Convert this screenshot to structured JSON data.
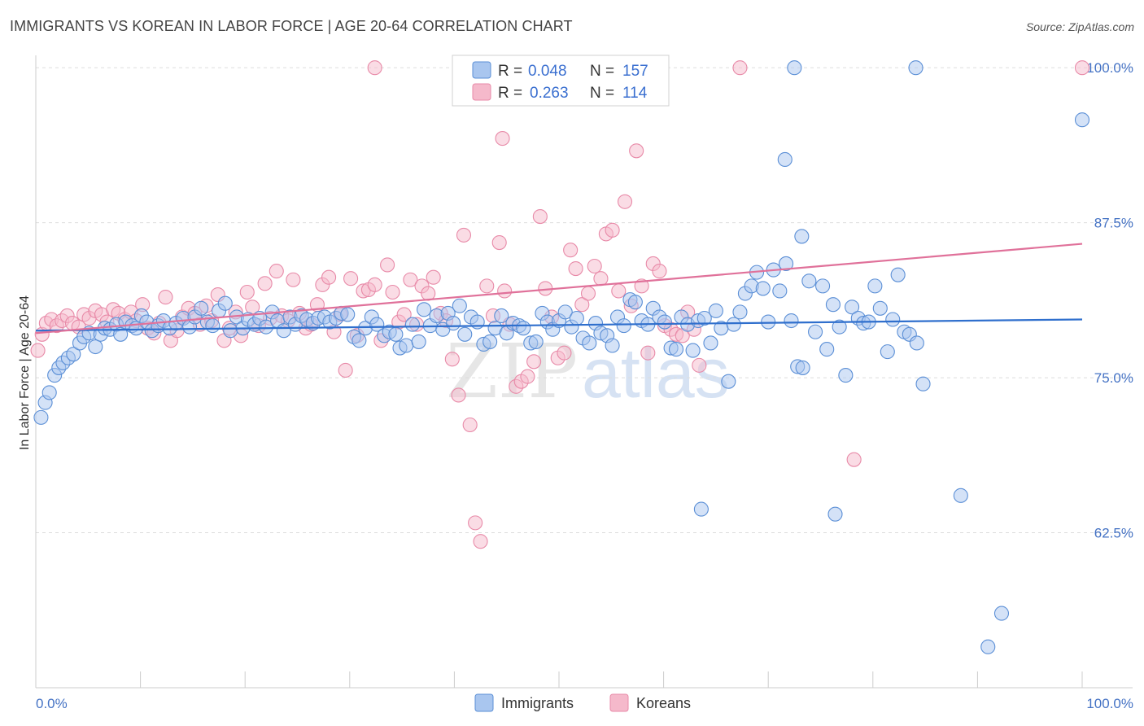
{
  "title": "IMMIGRANTS VS KOREAN IN LABOR FORCE | AGE 20-64 CORRELATION CHART",
  "source": "Source: ZipAtlas.com",
  "watermark": {
    "zip": "ZIP",
    "atlas": "atlas"
  },
  "colors": {
    "immigrants_fill": "#a9c6ef",
    "immigrants_stroke": "#5b8fd6",
    "immigrants_line": "#2f6fcd",
    "koreans_fill": "#f5b9cb",
    "koreans_stroke": "#e88aa8",
    "koreans_line": "#e0719a",
    "grid": "#dddddd",
    "tick_label": "#4472c4"
  },
  "legend": {
    "rows": [
      {
        "r_label": "R = ",
        "r_value": "0.048",
        "n_label": "N = ",
        "n_value": "157"
      },
      {
        "r_label": "R = ",
        "r_value": "0.263",
        "n_label": "N = ",
        "n_value": "114"
      }
    ],
    "bottom": [
      "Immigrants",
      "Koreans"
    ]
  },
  "chart_data": {
    "type": "scatter",
    "xlabel": "",
    "ylabel": "In Labor Force | Age 20-64",
    "xlim": [
      0,
      100
    ],
    "ylim": [
      50,
      101
    ],
    "x_tick_labels": [
      "0.0%",
      "100.0%"
    ],
    "y_ticks": [
      62.5,
      75.0,
      87.5,
      100.0
    ],
    "y_tick_labels": [
      "62.5%",
      "75.0%",
      "87.5%",
      "100.0%"
    ],
    "grid": true,
    "legend_position": "top-center",
    "series": [
      {
        "name": "Immigrants",
        "trend": [
          [
            0,
            78.8
          ],
          [
            100,
            79.7
          ]
        ],
        "points": [
          [
            0.5,
            71.8
          ],
          [
            0.9,
            73.0
          ],
          [
            1.3,
            73.8
          ],
          [
            1.8,
            75.2
          ],
          [
            2.2,
            75.8
          ],
          [
            2.6,
            76.2
          ],
          [
            3.1,
            76.6
          ],
          [
            3.6,
            76.9
          ],
          [
            4.2,
            77.8
          ],
          [
            4.6,
            78.3
          ],
          [
            5.1,
            78.6
          ],
          [
            5.7,
            77.5
          ],
          [
            6.2,
            78.5
          ],
          [
            6.6,
            79.0
          ],
          [
            7.1,
            78.9
          ],
          [
            7.7,
            79.3
          ],
          [
            8.1,
            78.5
          ],
          [
            8.6,
            79.5
          ],
          [
            9.2,
            79.2
          ],
          [
            9.6,
            79.0
          ],
          [
            10.1,
            80.0
          ],
          [
            10.6,
            79.5
          ],
          [
            11.1,
            78.8
          ],
          [
            11.7,
            79.2
          ],
          [
            12.2,
            79.6
          ],
          [
            12.8,
            79.0
          ],
          [
            13.4,
            79.4
          ],
          [
            14.1,
            79.8
          ],
          [
            14.7,
            79.1
          ],
          [
            15.2,
            79.9
          ],
          [
            15.8,
            80.6
          ],
          [
            16.4,
            79.5
          ],
          [
            16.9,
            79.2
          ],
          [
            17.5,
            80.4
          ],
          [
            18.1,
            81.0
          ],
          [
            18.6,
            78.8
          ],
          [
            19.2,
            79.9
          ],
          [
            19.8,
            79.0
          ],
          [
            20.3,
            79.7
          ],
          [
            20.9,
            79.3
          ],
          [
            21.4,
            79.8
          ],
          [
            22.0,
            79.1
          ],
          [
            22.6,
            80.3
          ],
          [
            23.1,
            79.6
          ],
          [
            23.7,
            78.8
          ],
          [
            24.3,
            79.9
          ],
          [
            24.8,
            79.3
          ],
          [
            25.4,
            80.0
          ],
          [
            25.9,
            79.7
          ],
          [
            26.5,
            79.4
          ],
          [
            27.0,
            79.8
          ],
          [
            27.6,
            79.9
          ],
          [
            28.1,
            79.5
          ],
          [
            28.7,
            79.8
          ],
          [
            29.2,
            80.2
          ],
          [
            29.8,
            80.1
          ],
          [
            30.4,
            78.3
          ],
          [
            30.9,
            78.0
          ],
          [
            31.5,
            79.0
          ],
          [
            32.1,
            79.9
          ],
          [
            32.6,
            79.3
          ],
          [
            33.3,
            78.4
          ],
          [
            33.8,
            78.7
          ],
          [
            34.4,
            78.5
          ],
          [
            34.8,
            77.4
          ],
          [
            35.4,
            77.6
          ],
          [
            36.0,
            79.3
          ],
          [
            36.6,
            77.9
          ],
          [
            37.1,
            80.5
          ],
          [
            37.7,
            79.2
          ],
          [
            38.3,
            80.0
          ],
          [
            38.9,
            78.9
          ],
          [
            39.4,
            80.2
          ],
          [
            39.9,
            79.4
          ],
          [
            40.5,
            80.8
          ],
          [
            41.0,
            78.5
          ],
          [
            41.6,
            79.9
          ],
          [
            42.2,
            79.5
          ],
          [
            42.8,
            77.7
          ],
          [
            43.4,
            77.9
          ],
          [
            43.9,
            79.0
          ],
          [
            44.5,
            80.0
          ],
          [
            45.0,
            78.6
          ],
          [
            45.6,
            79.4
          ],
          [
            46.2,
            79.2
          ],
          [
            46.6,
            79.0
          ],
          [
            47.3,
            77.8
          ],
          [
            47.8,
            77.9
          ],
          [
            48.4,
            80.2
          ],
          [
            48.9,
            79.5
          ],
          [
            49.4,
            78.9
          ],
          [
            50.0,
            79.6
          ],
          [
            50.6,
            80.3
          ],
          [
            51.2,
            79.1
          ],
          [
            51.7,
            79.8
          ],
          [
            52.3,
            78.2
          ],
          [
            52.9,
            77.8
          ],
          [
            53.5,
            79.4
          ],
          [
            54.0,
            78.6
          ],
          [
            54.6,
            78.4
          ],
          [
            55.1,
            77.6
          ],
          [
            55.6,
            79.9
          ],
          [
            56.2,
            79.2
          ],
          [
            56.8,
            81.3
          ],
          [
            57.3,
            81.1
          ],
          [
            57.9,
            79.6
          ],
          [
            58.5,
            79.3
          ],
          [
            59.0,
            80.6
          ],
          [
            59.6,
            79.9
          ],
          [
            60.1,
            79.5
          ],
          [
            60.7,
            77.4
          ],
          [
            61.2,
            77.3
          ],
          [
            61.7,
            79.9
          ],
          [
            62.3,
            79.3
          ],
          [
            62.8,
            77.2
          ],
          [
            63.3,
            79.6
          ],
          [
            63.9,
            79.8
          ],
          [
            64.5,
            77.8
          ],
          [
            65.0,
            80.4
          ],
          [
            65.5,
            79.0
          ],
          [
            66.2,
            74.7
          ],
          [
            66.7,
            79.3
          ],
          [
            67.3,
            80.3
          ],
          [
            67.8,
            81.8
          ],
          [
            68.4,
            82.4
          ],
          [
            68.9,
            83.5
          ],
          [
            69.5,
            82.2
          ],
          [
            70.0,
            79.5
          ],
          [
            70.5,
            83.7
          ],
          [
            71.1,
            82.0
          ],
          [
            71.7,
            84.2
          ],
          [
            72.2,
            79.6
          ],
          [
            72.8,
            75.9
          ],
          [
            73.3,
            75.8
          ],
          [
            73.9,
            82.8
          ],
          [
            74.5,
            78.7
          ],
          [
            75.2,
            82.4
          ],
          [
            75.6,
            77.3
          ],
          [
            76.2,
            80.9
          ],
          [
            76.8,
            79.1
          ],
          [
            77.4,
            75.2
          ],
          [
            78.0,
            80.7
          ],
          [
            78.6,
            79.8
          ],
          [
            79.1,
            79.4
          ],
          [
            79.6,
            79.5
          ],
          [
            80.2,
            82.4
          ],
          [
            80.7,
            80.6
          ],
          [
            81.4,
            77.1
          ],
          [
            81.9,
            79.7
          ],
          [
            82.4,
            83.3
          ],
          [
            83.0,
            78.7
          ],
          [
            83.5,
            78.5
          ],
          [
            84.2,
            77.8
          ],
          [
            84.8,
            74.5
          ],
          [
            72.5,
            100.0
          ],
          [
            84.1,
            100.0
          ],
          [
            100.0,
            95.8
          ],
          [
            92.3,
            56.0
          ],
          [
            91.0,
            53.3
          ],
          [
            88.4,
            65.5
          ],
          [
            63.6,
            64.4
          ],
          [
            76.4,
            64.0
          ],
          [
            71.6,
            92.6
          ],
          [
            73.2,
            86.4
          ]
        ]
      },
      {
        "name": "Koreans",
        "trend": [
          [
            0,
            78.6
          ],
          [
            100,
            85.8
          ]
        ],
        "points": [
          [
            0.2,
            77.2
          ],
          [
            0.6,
            78.5
          ],
          [
            1.0,
            79.4
          ],
          [
            1.5,
            79.7
          ],
          [
            2.0,
            79.2
          ],
          [
            2.5,
            79.6
          ],
          [
            3.0,
            80.0
          ],
          [
            3.5,
            79.4
          ],
          [
            4.1,
            79.1
          ],
          [
            4.6,
            80.1
          ],
          [
            5.1,
            79.8
          ],
          [
            5.7,
            80.4
          ],
          [
            6.3,
            80.1
          ],
          [
            6.8,
            79.5
          ],
          [
            7.4,
            80.5
          ],
          [
            7.9,
            80.2
          ],
          [
            8.5,
            79.7
          ],
          [
            9.1,
            80.3
          ],
          [
            9.6,
            79.6
          ],
          [
            10.2,
            80.9
          ],
          [
            10.7,
            79.0
          ],
          [
            11.3,
            78.6
          ],
          [
            11.8,
            79.4
          ],
          [
            12.4,
            81.5
          ],
          [
            12.9,
            78.0
          ],
          [
            13.5,
            78.8
          ],
          [
            14.0,
            79.9
          ],
          [
            14.6,
            80.6
          ],
          [
            15.2,
            80.2
          ],
          [
            15.7,
            79.3
          ],
          [
            16.3,
            80.8
          ],
          [
            16.8,
            79.6
          ],
          [
            17.4,
            81.7
          ],
          [
            18.0,
            78.0
          ],
          [
            18.5,
            79.0
          ],
          [
            19.1,
            80.3
          ],
          [
            19.6,
            78.4
          ],
          [
            20.2,
            81.9
          ],
          [
            20.7,
            80.7
          ],
          [
            21.3,
            79.2
          ],
          [
            21.9,
            82.6
          ],
          [
            22.4,
            79.8
          ],
          [
            23.0,
            83.6
          ],
          [
            23.5,
            80.0
          ],
          [
            24.1,
            79.6
          ],
          [
            24.6,
            82.9
          ],
          [
            25.2,
            80.2
          ],
          [
            25.8,
            79.0
          ],
          [
            26.3,
            79.3
          ],
          [
            26.9,
            80.9
          ],
          [
            27.4,
            82.5
          ],
          [
            28.0,
            83.1
          ],
          [
            28.5,
            78.7
          ],
          [
            29.1,
            80.1
          ],
          [
            29.6,
            75.6
          ],
          [
            30.1,
            83.0
          ],
          [
            30.7,
            78.4
          ],
          [
            31.3,
            82.0
          ],
          [
            31.8,
            82.1
          ],
          [
            32.4,
            82.5
          ],
          [
            33.0,
            78.0
          ],
          [
            33.6,
            84.1
          ],
          [
            34.1,
            81.9
          ],
          [
            34.7,
            79.5
          ],
          [
            35.2,
            80.1
          ],
          [
            35.8,
            82.9
          ],
          [
            36.4,
            79.3
          ],
          [
            36.9,
            82.4
          ],
          [
            37.5,
            81.8
          ],
          [
            38.0,
            83.1
          ],
          [
            38.7,
            80.2
          ],
          [
            39.2,
            79.6
          ],
          [
            39.8,
            76.5
          ],
          [
            40.4,
            73.6
          ],
          [
            40.9,
            86.5
          ],
          [
            41.5,
            71.2
          ],
          [
            42.0,
            63.3
          ],
          [
            42.5,
            61.8
          ],
          [
            43.1,
            82.4
          ],
          [
            43.7,
            80.0
          ],
          [
            44.3,
            85.9
          ],
          [
            44.8,
            82.0
          ],
          [
            45.3,
            79.3
          ],
          [
            45.9,
            74.3
          ],
          [
            46.4,
            74.7
          ],
          [
            47.0,
            75.1
          ],
          [
            47.6,
            76.3
          ],
          [
            48.2,
            88.0
          ],
          [
            48.7,
            82.2
          ],
          [
            49.3,
            79.9
          ],
          [
            49.9,
            76.6
          ],
          [
            50.5,
            77.0
          ],
          [
            51.1,
            85.3
          ],
          [
            51.6,
            83.8
          ],
          [
            52.2,
            80.9
          ],
          [
            52.8,
            81.8
          ],
          [
            53.4,
            84.0
          ],
          [
            54.0,
            83.0
          ],
          [
            54.5,
            86.6
          ],
          [
            55.1,
            86.9
          ],
          [
            55.7,
            82.0
          ],
          [
            56.3,
            89.2
          ],
          [
            56.9,
            80.8
          ],
          [
            57.4,
            93.3
          ],
          [
            57.9,
            82.4
          ],
          [
            58.5,
            77.0
          ],
          [
            59.0,
            84.2
          ],
          [
            59.6,
            83.6
          ],
          [
            60.1,
            79.2
          ],
          [
            60.7,
            78.9
          ],
          [
            61.2,
            78.5
          ],
          [
            61.8,
            78.4
          ],
          [
            62.3,
            80.3
          ],
          [
            62.9,
            78.9
          ],
          [
            63.4,
            76.0
          ],
          [
            44.6,
            94.3
          ],
          [
            78.2,
            68.4
          ],
          [
            67.3,
            100.0
          ],
          [
            100.0,
            100.0
          ],
          [
            32.4,
            100.0
          ]
        ]
      }
    ]
  }
}
